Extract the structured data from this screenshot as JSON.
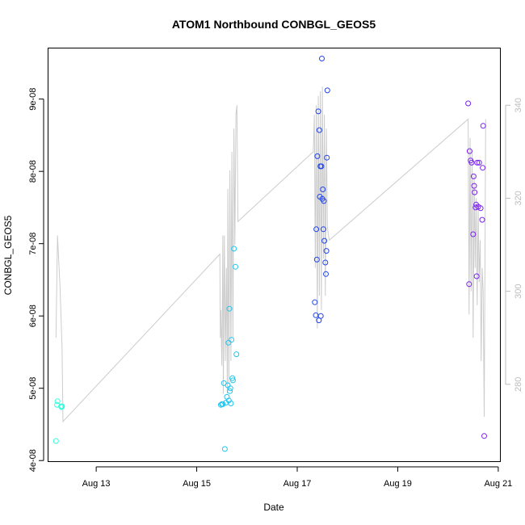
{
  "chart_data": {
    "type": "scatter",
    "title": "ATOM1 Northbound CONBGL_GEOS5",
    "xlabel": "Date",
    "ylabel": "CONBGL_GEOS5",
    "x_ticks": [
      {
        "day": 13,
        "label": "Aug 13"
      },
      {
        "day": 15,
        "label": "Aug 15"
      },
      {
        "day": 17,
        "label": "Aug 17"
      },
      {
        "day": 19,
        "label": "Aug 19"
      },
      {
        "day": 21,
        "label": "Aug 21"
      }
    ],
    "y_ticks": [
      {
        "value": 4e-08,
        "label": "4e-08"
      },
      {
        "value": 5e-08,
        "label": "5e-08"
      },
      {
        "value": 6e-08,
        "label": "6e-08"
      },
      {
        "value": 7e-08,
        "label": "7e-08"
      },
      {
        "value": 8e-08,
        "label": "8e-08"
      },
      {
        "value": 9e-08,
        "label": "9e-08"
      }
    ],
    "y2_ticks": [
      {
        "value": 280,
        "label": "280"
      },
      {
        "value": 300,
        "label": "300"
      },
      {
        "value": 320,
        "label": "320"
      },
      {
        "value": 340,
        "label": "340"
      }
    ],
    "xlim": [
      12.05,
      21.05
    ],
    "ylim": [
      3.98e-08,
      9.7e-08
    ],
    "y2lim": [
      263.3,
      352.2
    ],
    "grid": false,
    "points": [
      {
        "x": 12.2,
        "y": 4.27e-08,
        "color": "#33ffdd"
      },
      {
        "x": 12.22,
        "y": 4.77e-08,
        "color": "#33ffdd"
      },
      {
        "x": 12.23,
        "y": 4.82e-08,
        "color": "#33ffdd"
      },
      {
        "x": 12.3,
        "y": 4.75e-08,
        "color": "#33ffdd"
      },
      {
        "x": 12.31,
        "y": 4.74e-08,
        "color": "#33ffdd"
      },
      {
        "x": 12.32,
        "y": 4.75e-08,
        "color": "#33ffdd"
      },
      {
        "x": 15.48,
        "y": 4.77e-08,
        "color": "#22c4ee"
      },
      {
        "x": 15.5,
        "y": 4.78e-08,
        "color": "#22c4ee"
      },
      {
        "x": 15.52,
        "y": 4.78e-08,
        "color": "#22c4ee"
      },
      {
        "x": 15.54,
        "y": 5.07e-08,
        "color": "#22c4ee"
      },
      {
        "x": 15.56,
        "y": 4.16e-08,
        "color": "#22c4ee"
      },
      {
        "x": 15.58,
        "y": 4.8e-08,
        "color": "#22c4ee"
      },
      {
        "x": 15.6,
        "y": 4.88e-08,
        "color": "#22c4ee"
      },
      {
        "x": 15.62,
        "y": 5.04e-08,
        "color": "#22c4ee"
      },
      {
        "x": 15.63,
        "y": 5.63e-08,
        "color": "#22c4ee"
      },
      {
        "x": 15.64,
        "y": 4.83e-08,
        "color": "#22c4ee"
      },
      {
        "x": 15.65,
        "y": 6.1e-08,
        "color": "#22c4ee"
      },
      {
        "x": 15.66,
        "y": 4.96e-08,
        "color": "#22c4ee"
      },
      {
        "x": 15.67,
        "y": 5e-08,
        "color": "#22c4ee"
      },
      {
        "x": 15.68,
        "y": 4.79e-08,
        "color": "#22c4ee"
      },
      {
        "x": 15.69,
        "y": 5.67e-08,
        "color": "#22c4ee"
      },
      {
        "x": 15.71,
        "y": 5.14e-08,
        "color": "#22c4ee"
      },
      {
        "x": 15.72,
        "y": 5.11e-08,
        "color": "#22c4ee"
      },
      {
        "x": 15.74,
        "y": 6.93e-08,
        "color": "#22c4ee"
      },
      {
        "x": 15.77,
        "y": 6.68e-08,
        "color": "#22c4ee"
      },
      {
        "x": 15.79,
        "y": 5.47e-08,
        "color": "#22c4ee"
      },
      {
        "x": 17.35,
        "y": 6.19e-08,
        "color": "#2244ee"
      },
      {
        "x": 17.37,
        "y": 6.01e-08,
        "color": "#2244ee"
      },
      {
        "x": 17.38,
        "y": 7.2e-08,
        "color": "#2244ee"
      },
      {
        "x": 17.39,
        "y": 6.78e-08,
        "color": "#2244ee"
      },
      {
        "x": 17.4,
        "y": 8.21e-08,
        "color": "#2244ee"
      },
      {
        "x": 17.42,
        "y": 8.83e-08,
        "color": "#2244ee"
      },
      {
        "x": 17.43,
        "y": 5.94e-08,
        "color": "#2244ee"
      },
      {
        "x": 17.44,
        "y": 8.57e-08,
        "color": "#2244ee"
      },
      {
        "x": 17.45,
        "y": 7.65e-08,
        "color": "#2244ee"
      },
      {
        "x": 17.46,
        "y": 8.07e-08,
        "color": "#2244ee"
      },
      {
        "x": 17.47,
        "y": 6e-08,
        "color": "#2244ee"
      },
      {
        "x": 17.48,
        "y": 8.07e-08,
        "color": "#2244ee"
      },
      {
        "x": 17.49,
        "y": 9.56e-08,
        "color": "#2244ee"
      },
      {
        "x": 17.5,
        "y": 7.62e-08,
        "color": "#2244ee"
      },
      {
        "x": 17.51,
        "y": 7.75e-08,
        "color": "#2244ee"
      },
      {
        "x": 17.52,
        "y": 7.2e-08,
        "color": "#2244ee"
      },
      {
        "x": 17.53,
        "y": 7.59e-08,
        "color": "#2244ee"
      },
      {
        "x": 17.54,
        "y": 7.04e-08,
        "color": "#2244ee"
      },
      {
        "x": 17.56,
        "y": 6.74e-08,
        "color": "#2244ee"
      },
      {
        "x": 17.57,
        "y": 6.58e-08,
        "color": "#2244ee"
      },
      {
        "x": 17.58,
        "y": 6.9e-08,
        "color": "#2244ee"
      },
      {
        "x": 17.59,
        "y": 8.19e-08,
        "color": "#2244ee"
      },
      {
        "x": 17.6,
        "y": 9.12e-08,
        "color": "#2244ee"
      },
      {
        "x": 20.4,
        "y": 8.94e-08,
        "color": "#7a22ee"
      },
      {
        "x": 20.42,
        "y": 6.44e-08,
        "color": "#7a22ee"
      },
      {
        "x": 20.43,
        "y": 8.28e-08,
        "color": "#7a22ee"
      },
      {
        "x": 20.45,
        "y": 8.15e-08,
        "color": "#7a22ee"
      },
      {
        "x": 20.47,
        "y": 8.12e-08,
        "color": "#7a22ee"
      },
      {
        "x": 20.5,
        "y": 7.13e-08,
        "color": "#7a22ee"
      },
      {
        "x": 20.51,
        "y": 7.93e-08,
        "color": "#7a22ee"
      },
      {
        "x": 20.52,
        "y": 7.8e-08,
        "color": "#7a22ee"
      },
      {
        "x": 20.53,
        "y": 7.71e-08,
        "color": "#7a22ee"
      },
      {
        "x": 20.55,
        "y": 7.5e-08,
        "color": "#7a22ee"
      },
      {
        "x": 20.56,
        "y": 7.54e-08,
        "color": "#7a22ee"
      },
      {
        "x": 20.57,
        "y": 6.55e-08,
        "color": "#7a22ee"
      },
      {
        "x": 20.58,
        "y": 8.12e-08,
        "color": "#7a22ee"
      },
      {
        "x": 20.6,
        "y": 7.51e-08,
        "color": "#7a22ee"
      },
      {
        "x": 20.62,
        "y": 8.12e-08,
        "color": "#7a22ee"
      },
      {
        "x": 20.65,
        "y": 7.49e-08,
        "color": "#7a22ee"
      },
      {
        "x": 20.68,
        "y": 7.33e-08,
        "color": "#7a22ee"
      },
      {
        "x": 20.69,
        "y": 8.05e-08,
        "color": "#7a22ee"
      },
      {
        "x": 20.7,
        "y": 8.63e-08,
        "color": "#7a22ee"
      },
      {
        "x": 20.72,
        "y": 4.34e-08,
        "color": "#7a22ee"
      }
    ],
    "secondary_line": {
      "color": "#cccccc",
      "axis": "right",
      "x": [
        12.2,
        12.23,
        12.28,
        12.32,
        12.34,
        15.46,
        15.47,
        15.48,
        15.5,
        15.52,
        15.53,
        15.55,
        15.57,
        15.59,
        15.61,
        15.62,
        15.64,
        15.66,
        15.68,
        15.7,
        15.72,
        15.74,
        15.76,
        15.78,
        15.8,
        15.82,
        17.32,
        17.34,
        17.36,
        17.38,
        17.4,
        17.42,
        17.44,
        17.46,
        17.48,
        17.5,
        17.52,
        17.54,
        17.56,
        17.58,
        17.6,
        17.62,
        17.64,
        20.4,
        20.42,
        20.44,
        20.46,
        20.48,
        20.5,
        20.52,
        20.54,
        20.56,
        20.58,
        20.6,
        20.62,
        20.64,
        20.66,
        20.68,
        20.7,
        20.72,
        20.75
      ],
      "y": [
        290,
        312,
        301,
        288,
        272,
        308,
        290,
        296,
        284,
        312,
        278,
        312,
        285,
        305,
        278,
        322,
        280,
        326,
        285,
        330,
        290,
        335,
        310,
        338,
        340,
        315,
        330,
        338,
        305,
        340,
        292,
        342,
        299,
        343,
        296,
        344,
        307,
        338,
        299,
        335,
        314,
        312,
        311,
        337,
        295,
        333,
        300,
        330,
        290,
        325,
        305,
        320,
        297,
        318,
        302,
        311,
        285,
        305,
        300,
        273,
        337
      ]
    }
  }
}
